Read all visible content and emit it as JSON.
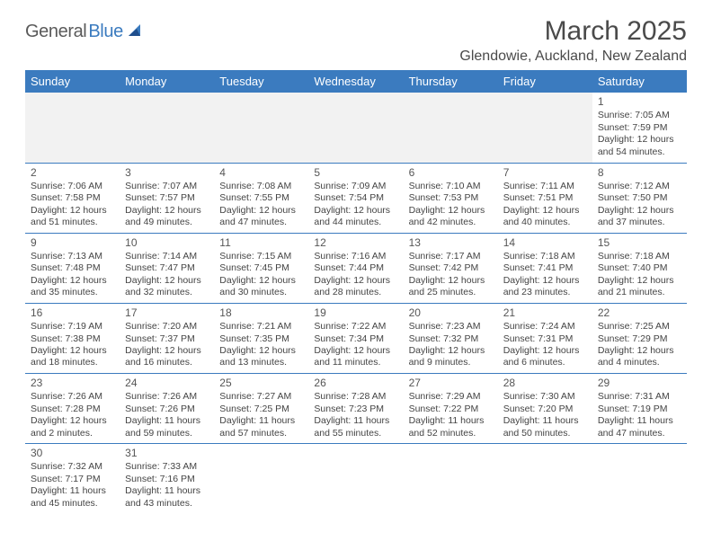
{
  "logo": {
    "general": "General",
    "blue": "Blue"
  },
  "title": {
    "month": "March 2025",
    "location": "Glendowie, Auckland, New Zealand"
  },
  "colors": {
    "header_bg": "#3b7bbf",
    "header_fg": "#ffffff",
    "empty_bg": "#f2f2f2",
    "text": "#444444",
    "border": "#3b7bbf"
  },
  "day_names": [
    "Sunday",
    "Monday",
    "Tuesday",
    "Wednesday",
    "Thursday",
    "Friday",
    "Saturday"
  ],
  "weeks": [
    [
      null,
      null,
      null,
      null,
      null,
      null,
      {
        "n": "1",
        "sr": "Sunrise: 7:05 AM",
        "ss": "Sunset: 7:59 PM",
        "d1": "Daylight: 12 hours",
        "d2": "and 54 minutes."
      }
    ],
    [
      {
        "n": "2",
        "sr": "Sunrise: 7:06 AM",
        "ss": "Sunset: 7:58 PM",
        "d1": "Daylight: 12 hours",
        "d2": "and 51 minutes."
      },
      {
        "n": "3",
        "sr": "Sunrise: 7:07 AM",
        "ss": "Sunset: 7:57 PM",
        "d1": "Daylight: 12 hours",
        "d2": "and 49 minutes."
      },
      {
        "n": "4",
        "sr": "Sunrise: 7:08 AM",
        "ss": "Sunset: 7:55 PM",
        "d1": "Daylight: 12 hours",
        "d2": "and 47 minutes."
      },
      {
        "n": "5",
        "sr": "Sunrise: 7:09 AM",
        "ss": "Sunset: 7:54 PM",
        "d1": "Daylight: 12 hours",
        "d2": "and 44 minutes."
      },
      {
        "n": "6",
        "sr": "Sunrise: 7:10 AM",
        "ss": "Sunset: 7:53 PM",
        "d1": "Daylight: 12 hours",
        "d2": "and 42 minutes."
      },
      {
        "n": "7",
        "sr": "Sunrise: 7:11 AM",
        "ss": "Sunset: 7:51 PM",
        "d1": "Daylight: 12 hours",
        "d2": "and 40 minutes."
      },
      {
        "n": "8",
        "sr": "Sunrise: 7:12 AM",
        "ss": "Sunset: 7:50 PM",
        "d1": "Daylight: 12 hours",
        "d2": "and 37 minutes."
      }
    ],
    [
      {
        "n": "9",
        "sr": "Sunrise: 7:13 AM",
        "ss": "Sunset: 7:48 PM",
        "d1": "Daylight: 12 hours",
        "d2": "and 35 minutes."
      },
      {
        "n": "10",
        "sr": "Sunrise: 7:14 AM",
        "ss": "Sunset: 7:47 PM",
        "d1": "Daylight: 12 hours",
        "d2": "and 32 minutes."
      },
      {
        "n": "11",
        "sr": "Sunrise: 7:15 AM",
        "ss": "Sunset: 7:45 PM",
        "d1": "Daylight: 12 hours",
        "d2": "and 30 minutes."
      },
      {
        "n": "12",
        "sr": "Sunrise: 7:16 AM",
        "ss": "Sunset: 7:44 PM",
        "d1": "Daylight: 12 hours",
        "d2": "and 28 minutes."
      },
      {
        "n": "13",
        "sr": "Sunrise: 7:17 AM",
        "ss": "Sunset: 7:42 PM",
        "d1": "Daylight: 12 hours",
        "d2": "and 25 minutes."
      },
      {
        "n": "14",
        "sr": "Sunrise: 7:18 AM",
        "ss": "Sunset: 7:41 PM",
        "d1": "Daylight: 12 hours",
        "d2": "and 23 minutes."
      },
      {
        "n": "15",
        "sr": "Sunrise: 7:18 AM",
        "ss": "Sunset: 7:40 PM",
        "d1": "Daylight: 12 hours",
        "d2": "and 21 minutes."
      }
    ],
    [
      {
        "n": "16",
        "sr": "Sunrise: 7:19 AM",
        "ss": "Sunset: 7:38 PM",
        "d1": "Daylight: 12 hours",
        "d2": "and 18 minutes."
      },
      {
        "n": "17",
        "sr": "Sunrise: 7:20 AM",
        "ss": "Sunset: 7:37 PM",
        "d1": "Daylight: 12 hours",
        "d2": "and 16 minutes."
      },
      {
        "n": "18",
        "sr": "Sunrise: 7:21 AM",
        "ss": "Sunset: 7:35 PM",
        "d1": "Daylight: 12 hours",
        "d2": "and 13 minutes."
      },
      {
        "n": "19",
        "sr": "Sunrise: 7:22 AM",
        "ss": "Sunset: 7:34 PM",
        "d1": "Daylight: 12 hours",
        "d2": "and 11 minutes."
      },
      {
        "n": "20",
        "sr": "Sunrise: 7:23 AM",
        "ss": "Sunset: 7:32 PM",
        "d1": "Daylight: 12 hours",
        "d2": "and 9 minutes."
      },
      {
        "n": "21",
        "sr": "Sunrise: 7:24 AM",
        "ss": "Sunset: 7:31 PM",
        "d1": "Daylight: 12 hours",
        "d2": "and 6 minutes."
      },
      {
        "n": "22",
        "sr": "Sunrise: 7:25 AM",
        "ss": "Sunset: 7:29 PM",
        "d1": "Daylight: 12 hours",
        "d2": "and 4 minutes."
      }
    ],
    [
      {
        "n": "23",
        "sr": "Sunrise: 7:26 AM",
        "ss": "Sunset: 7:28 PM",
        "d1": "Daylight: 12 hours",
        "d2": "and 2 minutes."
      },
      {
        "n": "24",
        "sr": "Sunrise: 7:26 AM",
        "ss": "Sunset: 7:26 PM",
        "d1": "Daylight: 11 hours",
        "d2": "and 59 minutes."
      },
      {
        "n": "25",
        "sr": "Sunrise: 7:27 AM",
        "ss": "Sunset: 7:25 PM",
        "d1": "Daylight: 11 hours",
        "d2": "and 57 minutes."
      },
      {
        "n": "26",
        "sr": "Sunrise: 7:28 AM",
        "ss": "Sunset: 7:23 PM",
        "d1": "Daylight: 11 hours",
        "d2": "and 55 minutes."
      },
      {
        "n": "27",
        "sr": "Sunrise: 7:29 AM",
        "ss": "Sunset: 7:22 PM",
        "d1": "Daylight: 11 hours",
        "d2": "and 52 minutes."
      },
      {
        "n": "28",
        "sr": "Sunrise: 7:30 AM",
        "ss": "Sunset: 7:20 PM",
        "d1": "Daylight: 11 hours",
        "d2": "and 50 minutes."
      },
      {
        "n": "29",
        "sr": "Sunrise: 7:31 AM",
        "ss": "Sunset: 7:19 PM",
        "d1": "Daylight: 11 hours",
        "d2": "and 47 minutes."
      }
    ],
    [
      {
        "n": "30",
        "sr": "Sunrise: 7:32 AM",
        "ss": "Sunset: 7:17 PM",
        "d1": "Daylight: 11 hours",
        "d2": "and 45 minutes."
      },
      {
        "n": "31",
        "sr": "Sunrise: 7:33 AM",
        "ss": "Sunset: 7:16 PM",
        "d1": "Daylight: 11 hours",
        "d2": "and 43 minutes."
      },
      null,
      null,
      null,
      null,
      null
    ]
  ]
}
